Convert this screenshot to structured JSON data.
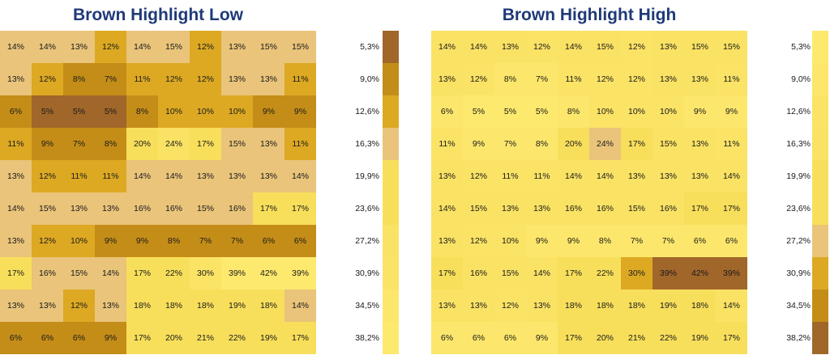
{
  "chart_data": [
    {
      "type": "heatmap",
      "title": "Brown Highlight Low",
      "rows": 10,
      "cols": 10,
      "values": [
        [
          14,
          14,
          13,
          12,
          14,
          15,
          12,
          13,
          15,
          15
        ],
        [
          13,
          12,
          8,
          7,
          11,
          12,
          12,
          13,
          13,
          11
        ],
        [
          6,
          5,
          5,
          5,
          8,
          10,
          10,
          10,
          9,
          9
        ],
        [
          11,
          9,
          7,
          8,
          20,
          24,
          17,
          15,
          13,
          11
        ],
        [
          13,
          12,
          11,
          11,
          14,
          14,
          13,
          13,
          13,
          14
        ],
        [
          14,
          15,
          13,
          13,
          16,
          16,
          15,
          16,
          17,
          17
        ],
        [
          13,
          12,
          10,
          9,
          9,
          8,
          7,
          7,
          6,
          6
        ],
        [
          17,
          16,
          15,
          14,
          17,
          22,
          30,
          39,
          42,
          39
        ],
        [
          13,
          13,
          12,
          13,
          18,
          18,
          18,
          19,
          18,
          14
        ],
        [
          6,
          6,
          6,
          9,
          17,
          20,
          21,
          22,
          19,
          17
        ]
      ],
      "value_suffix": "%",
      "legend_labels": [
        "5,3%",
        "9,0%",
        "12,6%",
        "16,3%",
        "19,9%",
        "23,6%",
        "27,2%",
        "30,9%",
        "34,5%",
        "38,2%"
      ],
      "color_stops": [
        "#a0662a",
        "#c48d18",
        "#dda923",
        "#e9c47a",
        "#f8df5b",
        "#f8df5b",
        "#fae264",
        "#fbe366",
        "#fce76c",
        "#fde96e"
      ],
      "color_bins": [
        5.3,
        9.0,
        12.6,
        16.3,
        19.9,
        23.6,
        27.2,
        30.9,
        34.5,
        38.2
      ]
    },
    {
      "type": "heatmap",
      "title": "Brown Highlight High",
      "rows": 10,
      "cols": 10,
      "values": [
        [
          14,
          14,
          13,
          12,
          14,
          15,
          12,
          13,
          15,
          15
        ],
        [
          13,
          12,
          8,
          7,
          11,
          12,
          12,
          13,
          13,
          11
        ],
        [
          6,
          5,
          5,
          5,
          8,
          10,
          10,
          10,
          9,
          9
        ],
        [
          11,
          9,
          7,
          8,
          20,
          24,
          17,
          15,
          13,
          11
        ],
        [
          13,
          12,
          11,
          11,
          14,
          14,
          13,
          13,
          13,
          14
        ],
        [
          14,
          15,
          13,
          13,
          16,
          16,
          15,
          16,
          17,
          17
        ],
        [
          13,
          12,
          10,
          9,
          9,
          8,
          7,
          7,
          6,
          6
        ],
        [
          17,
          16,
          15,
          14,
          17,
          22,
          30,
          39,
          42,
          39
        ],
        [
          13,
          13,
          12,
          13,
          18,
          18,
          18,
          19,
          18,
          14
        ],
        [
          6,
          6,
          6,
          9,
          17,
          20,
          21,
          22,
          19,
          17
        ]
      ],
      "value_suffix": "%",
      "legend_labels": [
        "5,3%",
        "9,0%",
        "12,6%",
        "16,3%",
        "19,9%",
        "23,6%",
        "27,2%",
        "30,9%",
        "34,5%",
        "38,2%"
      ],
      "color_stops": [
        "#fde96e",
        "#fce76c",
        "#fbe366",
        "#fae264",
        "#f8df5b",
        "#f8df5b",
        "#e9c47a",
        "#dda923",
        "#c48d18",
        "#a0662a"
      ],
      "color_bins": [
        5.3,
        9.0,
        12.6,
        16.3,
        19.9,
        23.6,
        27.2,
        30.9,
        34.5,
        38.2
      ]
    }
  ]
}
